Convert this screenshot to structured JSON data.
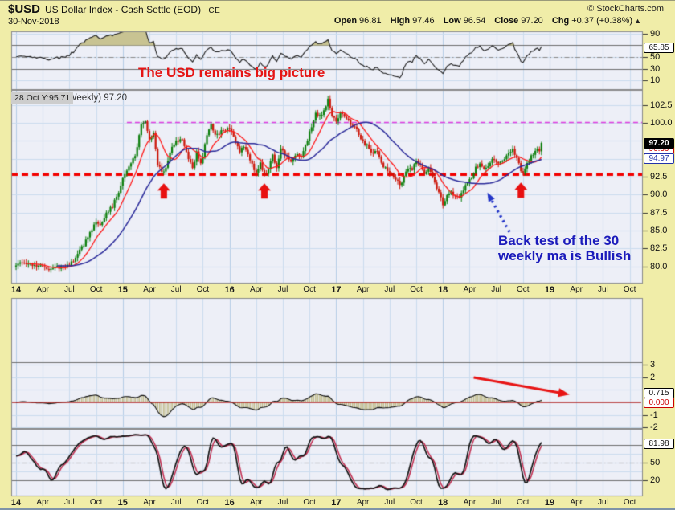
{
  "header": {
    "symbol": "$USD",
    "title": "US Dollar Index - Cash Settle (EOD)",
    "exchange": "ICE",
    "copyright": "© StockCharts.com",
    "date": "30-Nov-2018",
    "quote": {
      "open_label": "Open",
      "open": "96.81",
      "high_label": "High",
      "high": "97.46",
      "low_label": "Low",
      "low": "96.54",
      "close_label": "Close",
      "close": "97.20",
      "chg_label": "Chg",
      "chg": "+0.37 (+0.38%)",
      "dir": "▲"
    }
  },
  "tooltip": "28 Oct Y:95.71",
  "chart_label": "$USD (Weekly) 97.20",
  "annotations": {
    "top_text": "The USD remains big picture",
    "bullish_line1": "Back test of the 30",
    "bullish_line2": "weekly ma is Bullish"
  },
  "colors": {
    "page_bg": "#f0eda8",
    "panel_bg": "#edeff7",
    "grid": "#cbdcee",
    "grid_year": "#b6cde6",
    "frame": "#8a8a8a",
    "up": "#0a7d0a",
    "down": "#cc1508",
    "ma10": "#ff1a1a",
    "ma30": "#2a2a9a",
    "support": "#f20000",
    "resistance": "#e03ce0",
    "annotation_red": "#e51414",
    "annotation_blue": "#1b1bbb",
    "hist_fill": "#c2bd8c",
    "hist_zero": "#b22a2a",
    "osc_line": "#1b1b1b",
    "osc_fill": "#c8c392",
    "stoch_k": "#141414",
    "stoch_d": "#c22b4e",
    "dark_level": "#6e6e6e"
  },
  "badges": [
    {
      "name": "oscillator-value-badge",
      "text": "65.85",
      "panel": "rsi",
      "v": 65.85,
      "style": "plain"
    },
    {
      "name": "price-badge",
      "text": "97.20",
      "panel": "main",
      "v": 97.2,
      "style": "inverse"
    },
    {
      "name": "ma10-value-badge",
      "text": "96.39",
      "panel": "main",
      "v": 96.39,
      "style": "red"
    },
    {
      "name": "ma30-value-badge",
      "text": "94.97",
      "panel": "main",
      "v": 94.97,
      "style": "blue"
    },
    {
      "name": "histogram-value-badge",
      "text": "0.715",
      "panel": "hist",
      "v": 0.715,
      "style": "plain"
    },
    {
      "name": "histogram-zero-badge",
      "text": "0.000",
      "panel": "hist",
      "v": 0,
      "style": "red"
    },
    {
      "name": "stochastic-value-badge",
      "text": "81.98",
      "panel": "stoch",
      "v": 81.98,
      "style": "plain"
    }
  ],
  "axes": {
    "y_right": [
      {
        "panel": "rsi",
        "ticks": [
          {
            "t": "90",
            "v": 90
          },
          {
            "t": "50",
            "v": 50
          },
          {
            "t": "30",
            "v": 30
          },
          {
            "t": "10",
            "v": 10
          }
        ]
      },
      {
        "panel": "main",
        "ticks": [
          {
            "t": "102.5",
            "v": 102.5
          },
          {
            "t": "100.0",
            "v": 100
          },
          {
            "t": "92.5",
            "v": 92.5
          },
          {
            "t": "90.0",
            "v": 90
          },
          {
            "t": "87.5",
            "v": 87.5
          },
          {
            "t": "85.0",
            "v": 85
          },
          {
            "t": "82.5",
            "v": 82.5
          },
          {
            "t": "80.0",
            "v": 80
          }
        ]
      },
      {
        "panel": "hist",
        "ticks": [
          {
            "t": "3",
            "v": 3
          },
          {
            "t": "2",
            "v": 2
          },
          {
            "t": "-1",
            "v": -1
          },
          {
            "t": "-2",
            "v": -2
          }
        ]
      },
      {
        "panel": "stoch",
        "ticks": [
          {
            "t": "50",
            "v": 50
          },
          {
            "t": "20",
            "v": 20
          }
        ]
      }
    ],
    "x_labels": [
      "14",
      "Apr",
      "Jul",
      "Oct",
      "15",
      "Apr",
      "Jul",
      "Oct",
      "16",
      "Apr",
      "Jul",
      "Oct",
      "17",
      "Apr",
      "Jul",
      "Oct",
      "18",
      "Apr",
      "Jul",
      "Oct",
      "19",
      "Apr",
      "Jul",
      "Oct"
    ]
  },
  "chart_data": {
    "type": "candlestick",
    "title": "$USD (Weekly) 97.20",
    "timeframe": "weekly",
    "x_axis": {
      "start_year": 2014,
      "end_year_shown": 2019,
      "weeks_shown": 257
    },
    "ylim": [
      77.6,
      104.6
    ],
    "y_ticks": [
      80.0,
      82.5,
      85.0,
      87.5,
      90.0,
      92.5,
      95.0,
      97.5,
      100.0,
      102.5
    ],
    "price_weekly_close_keypoints": [
      [
        0,
        80.3
      ],
      [
        6,
        80.6
      ],
      [
        10,
        80.0
      ],
      [
        14,
        79.8
      ],
      [
        18,
        79.6
      ],
      [
        22,
        80.0
      ],
      [
        26,
        80.1
      ],
      [
        29,
        81.3
      ],
      [
        33,
        83.0
      ],
      [
        36,
        84.8
      ],
      [
        39,
        86.2
      ],
      [
        41,
        85.6
      ],
      [
        44,
        87.5
      ],
      [
        47,
        88.4
      ],
      [
        50,
        90.5
      ],
      [
        52,
        92.1
      ],
      [
        55,
        94.0
      ],
      [
        58,
        95.3
      ],
      [
        61,
        99.6
      ],
      [
        63,
        100.1
      ],
      [
        65,
        97.5
      ],
      [
        67,
        98.8
      ],
      [
        69,
        94.2
      ],
      [
        71,
        93.3
      ],
      [
        73,
        93.6
      ],
      [
        75,
        96.0
      ],
      [
        78,
        97.4
      ],
      [
        81,
        97.8
      ],
      [
        84,
        95.2
      ],
      [
        86,
        93.6
      ],
      [
        88,
        95.9
      ],
      [
        90,
        94.2
      ],
      [
        93,
        98.2
      ],
      [
        95,
        99.7
      ],
      [
        97,
        98.3
      ],
      [
        99,
        98.6
      ],
      [
        102,
        99.1
      ],
      [
        104,
        99.4
      ],
      [
        107,
        97.1
      ],
      [
        109,
        96.0
      ],
      [
        111,
        96.8
      ],
      [
        114,
        94.7
      ],
      [
        117,
        93.1
      ],
      [
        119,
        94.4
      ],
      [
        121,
        92.7
      ],
      [
        123,
        93.4
      ],
      [
        125,
        95.6
      ],
      [
        127,
        93.7
      ],
      [
        129,
        96.3
      ],
      [
        131,
        95.7
      ],
      [
        134,
        94.6
      ],
      [
        137,
        95.7
      ],
      [
        139,
        95.3
      ],
      [
        141,
        96.8
      ],
      [
        143,
        98.6
      ],
      [
        146,
        101.3
      ],
      [
        149,
        100.9
      ],
      [
        152,
        103.2
      ],
      [
        154,
        101.0
      ],
      [
        156,
        100.3
      ],
      [
        158,
        101.4
      ],
      [
        160,
        101.0
      ],
      [
        162,
        100.2
      ],
      [
        164,
        99.6
      ],
      [
        166,
        98.9
      ],
      [
        169,
        97.3
      ],
      [
        171,
        96.9
      ],
      [
        174,
        95.7
      ],
      [
        176,
        96.2
      ],
      [
        179,
        93.9
      ],
      [
        182,
        93.0
      ],
      [
        184,
        92.6
      ],
      [
        187,
        91.4
      ],
      [
        189,
        92.4
      ],
      [
        191,
        93.6
      ],
      [
        193,
        93.4
      ],
      [
        195,
        94.9
      ],
      [
        197,
        93.9
      ],
      [
        199,
        92.9
      ],
      [
        201,
        93.9
      ],
      [
        203,
        92.6
      ],
      [
        205,
        91.0
      ],
      [
        208,
        88.7
      ],
      [
        210,
        89.9
      ],
      [
        212,
        90.2
      ],
      [
        214,
        89.9
      ],
      [
        216,
        89.6
      ],
      [
        218,
        90.6
      ],
      [
        220,
        91.6
      ],
      [
        222,
        92.5
      ],
      [
        224,
        93.9
      ],
      [
        226,
        94.2
      ],
      [
        228,
        93.6
      ],
      [
        230,
        94.1
      ],
      [
        232,
        94.9
      ],
      [
        234,
        94.3
      ],
      [
        236,
        94.6
      ],
      [
        238,
        95.1
      ],
      [
        240,
        95.6
      ],
      [
        242,
        96.2
      ],
      [
        244,
        94.9
      ],
      [
        246,
        93.5
      ],
      [
        247,
        93.1
      ],
      [
        249,
        94.4
      ],
      [
        251,
        95.4
      ],
      [
        253,
        96.0
      ],
      [
        254,
        96.3
      ],
      [
        255,
        96.0
      ],
      [
        256,
        97.2
      ]
    ],
    "overlays": [
      {
        "name": "10-week moving average",
        "periods": 10,
        "color_key": "ma10",
        "last": 96.39
      },
      {
        "name": "30-week moving average",
        "periods": 30,
        "color_key": "ma30",
        "last": 94.97
      }
    ],
    "hlines": [
      {
        "value": 92.8,
        "role": "support",
        "style": "thick-red-dashed",
        "from_week": 0
      },
      {
        "value": 100.05,
        "role": "resistance",
        "style": "magenta-dashed",
        "from_week": 54
      }
    ],
    "sub_panels": [
      {
        "id": "rsi",
        "name": "momentum-oscillator",
        "type": "line",
        "periods": 14,
        "levels": [
          30,
          50,
          70
        ],
        "last": 65.85
      },
      {
        "id": "hist",
        "name": "momentum-histogram",
        "type": "histogram",
        "params": [
          12,
          26,
          9
        ],
        "zero_line": 0.0,
        "level_line": 3.2,
        "last": 0.715
      },
      {
        "id": "stoch",
        "name": "stochastic-oscillator",
        "type": "dual-line",
        "params": [
          14,
          3,
          3
        ],
        "levels": [
          20,
          50,
          80
        ],
        "last": 81.98
      }
    ],
    "chart_annotations": {
      "up_arrows_week_price": [
        [
          72,
          91.8
        ],
        [
          121,
          91.8
        ],
        [
          246,
          91.9
        ]
      ],
      "blue_dotted_arrow": {
        "from_week_price": [
          240.4,
          84.8
        ],
        "to_week_price": [
          230.6,
          89.8
        ]
      },
      "red_trend_arrow": {
        "panel": "hist",
        "from_week_value": [
          223,
          1.97
        ],
        "to_week_value": [
          267,
          0.7
        ]
      }
    }
  }
}
